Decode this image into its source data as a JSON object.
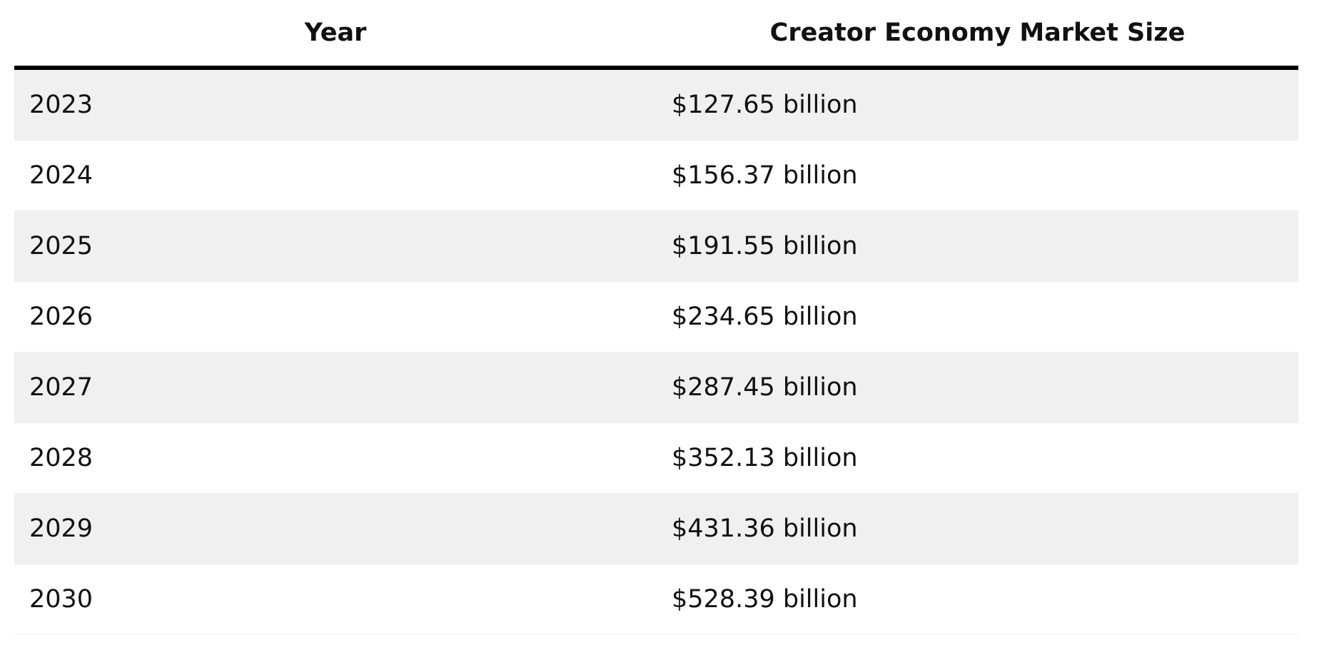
{
  "table": {
    "columns": [
      "Year",
      "Creator Economy Market Size"
    ],
    "rows": [
      [
        "2023",
        "$127.65 billion"
      ],
      [
        "2024",
        "$156.37 billion"
      ],
      [
        "2025",
        "$191.55 billion"
      ],
      [
        "2026",
        "$234.65 billion"
      ],
      [
        "2027",
        "$287.45 billion"
      ],
      [
        "2028",
        "$352.13 billion"
      ],
      [
        "2029",
        "$431.36 billion"
      ],
      [
        "2030",
        "$528.39 billion"
      ]
    ]
  }
}
